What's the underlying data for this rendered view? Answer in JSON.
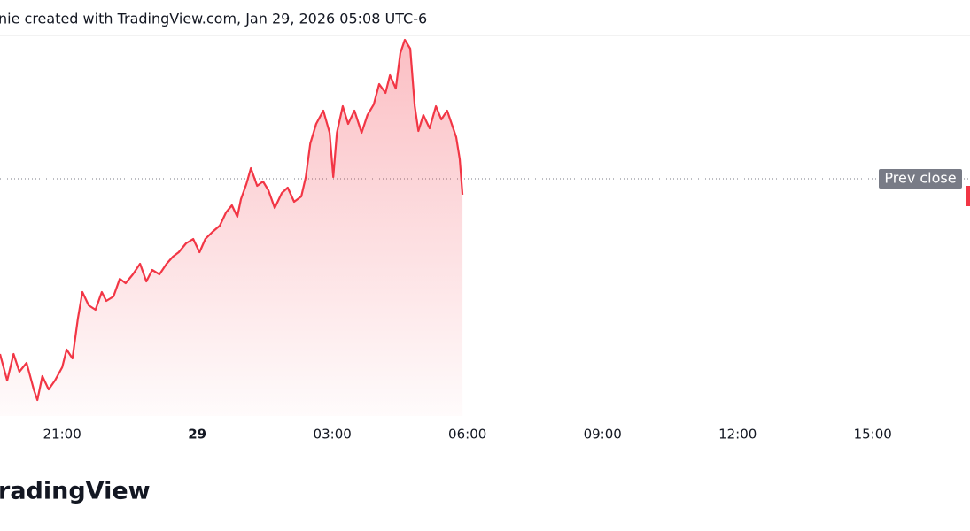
{
  "header": "nie created with TradingView.com, Jan 29, 2026 05:08 UTC-6",
  "chart_data": {
    "type": "area",
    "color": "#f23645",
    "x": [
      19.62,
      19.78,
      19.92,
      20.05,
      20.21,
      20.37,
      20.45,
      20.56,
      20.7,
      20.84,
      21.0,
      21.1,
      21.23,
      21.35,
      21.45,
      21.59,
      21.74,
      21.88,
      21.98,
      22.14,
      22.28,
      22.41,
      22.57,
      22.73,
      22.87,
      23.0,
      23.16,
      23.32,
      23.46,
      23.59,
      23.75,
      23.91,
      24.05,
      24.18,
      24.34,
      24.5,
      24.64,
      24.77,
      24.89,
      24.97,
      25.09,
      25.19,
      25.33,
      25.46,
      25.58,
      25.72,
      25.88,
      26.01,
      26.15,
      26.31,
      26.41,
      26.51,
      26.64,
      26.8,
      26.94,
      27.02,
      27.1,
      27.23,
      27.35,
      27.49,
      27.65,
      27.78,
      27.92,
      28.04,
      28.18,
      28.28,
      28.41,
      28.51,
      28.61,
      28.73,
      28.83,
      28.91,
      29.02,
      29.16,
      29.3,
      29.42,
      29.55,
      29.65,
      29.75,
      29.83,
      29.89
    ],
    "values": [
      70,
      40,
      70,
      50,
      60,
      30,
      18,
      45,
      30,
      40,
      55,
      75,
      65,
      110,
      140,
      125,
      120,
      140,
      130,
      135,
      155,
      150,
      160,
      172,
      152,
      165,
      160,
      172,
      180,
      185,
      195,
      200,
      185,
      200,
      208,
      215,
      230,
      238,
      225,
      245,
      262,
      280,
      260,
      265,
      255,
      235,
      252,
      258,
      242,
      248,
      270,
      308,
      330,
      345,
      320,
      270,
      320,
      350,
      330,
      345,
      320,
      340,
      352,
      375,
      365,
      385,
      370,
      410,
      425,
      415,
      350,
      322,
      340,
      325,
      350,
      335,
      345,
      330,
      315,
      290,
      250
    ],
    "xlim": [
      19.62,
      41.16
    ],
    "xticks": [
      {
        "value": 21,
        "label": "21:00"
      },
      {
        "value": 24,
        "label": "29"
      },
      {
        "value": 27,
        "label": "03:00"
      },
      {
        "value": 30,
        "label": "06:00"
      },
      {
        "value": 33,
        "label": "09:00"
      },
      {
        "value": 36,
        "label": "12:00"
      },
      {
        "value": 39,
        "label": "15:00"
      }
    ],
    "ylim": [
      0,
      430
    ],
    "prev_close": {
      "value": 268,
      "label": "Prev close"
    }
  },
  "footer": {
    "logo": "radingView"
  }
}
